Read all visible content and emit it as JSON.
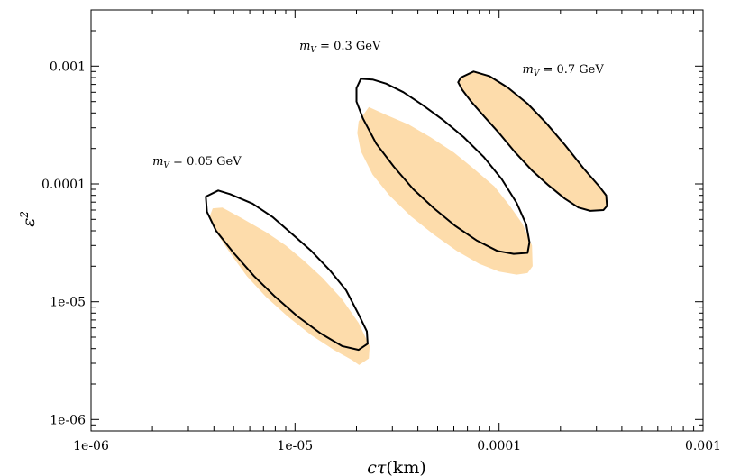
{
  "chart_data": {
    "type": "area",
    "title": "",
    "xlabel": {
      "symbol": "cτ",
      "unit": "(km)"
    },
    "ylabel": {
      "symbol": "ε",
      "power": "2"
    },
    "xscale": "log",
    "yscale": "log",
    "xlim": [
      1e-06,
      0.001
    ],
    "ylim": [
      8e-07,
      0.003
    ],
    "grid": false,
    "legend": "none",
    "x_ticks": [
      {
        "value": 1e-06,
        "label": "1e-06"
      },
      {
        "value": 1e-05,
        "label": "1e-05"
      },
      {
        "value": 0.0001,
        "label": "0.0001"
      },
      {
        "value": 0.001,
        "label": "0.001"
      }
    ],
    "y_ticks": [
      {
        "value": 1e-06,
        "label": "1e-06"
      },
      {
        "value": 1e-05,
        "label": "1e-05"
      },
      {
        "value": 0.0001,
        "label": "0.0001"
      },
      {
        "value": 0.001,
        "label": "0.001"
      }
    ],
    "colors": {
      "filled": "#fddcab",
      "outline": "#000000"
    },
    "annotations": [
      {
        "symbol": "m",
        "sub": "V",
        "rest": " = 0.05 GeV",
        "x": 2e-06,
        "y": 0.000145
      },
      {
        "symbol": "m",
        "sub": "V",
        "rest": " = 0.3 GeV",
        "x": 1.05e-05,
        "y": 0.00138
      },
      {
        "symbol": "m",
        "sub": "V",
        "rest": " = 0.7 GeV",
        "x": 0.00013,
        "y": 0.00087
      }
    ],
    "regions": [
      {
        "mass": "0.05 GeV",
        "filled": [
          [
            3.95e-06,
            6.2e-05
          ],
          [
            4.4e-06,
            6.3e-05
          ],
          [
            5.5e-06,
            5.1e-05
          ],
          [
            7.2e-06,
            3.9e-05
          ],
          [
            9e-06,
            3e-05
          ],
          [
            1.1e-05,
            2.25e-05
          ],
          [
            1.36e-05,
            1.6e-05
          ],
          [
            1.7e-05,
            1.05e-05
          ],
          [
            2.05e-05,
            6.6e-06
          ],
          [
            2.32e-05,
            4.2e-06
          ],
          [
            2.3e-05,
            3.3e-06
          ],
          [
            2.06e-05,
            2.9e-06
          ],
          [
            1.9e-05,
            3.2e-06
          ],
          [
            1.55e-05,
            3.9e-06
          ],
          [
            1.2e-05,
            5.2e-06
          ],
          [
            9.2e-06,
            7.5e-06
          ],
          [
            7.2e-06,
            1.1e-05
          ],
          [
            5.8e-06,
            1.65e-05
          ],
          [
            4.8e-06,
            2.6e-05
          ],
          [
            4.1e-06,
            3.9e-05
          ],
          [
            3.8e-06,
            5.2e-05
          ]
        ],
        "outline": [
          [
            3.65e-06,
            7.8e-05
          ],
          [
            4.2e-06,
            8.8e-05
          ],
          [
            4.8e-06,
            8.2e-05
          ],
          [
            6.2e-06,
            6.8e-05
          ],
          [
            7.8e-06,
            5.2e-05
          ],
          [
            9.6e-06,
            3.8e-05
          ],
          [
            1.2e-05,
            2.7e-05
          ],
          [
            1.48e-05,
            1.85e-05
          ],
          [
            1.78e-05,
            1.25e-05
          ],
          [
            2.05e-05,
            7.8e-06
          ],
          [
            2.25e-05,
            5.6e-06
          ],
          [
            2.27e-05,
            4.4e-06
          ],
          [
            2.05e-05,
            3.9e-06
          ],
          [
            1.7e-05,
            4.2e-06
          ],
          [
            1.33e-05,
            5.4e-06
          ],
          [
            1.03e-05,
            7.5e-06
          ],
          [
            8e-06,
            1.1e-05
          ],
          [
            6.3e-06,
            1.65e-05
          ],
          [
            5e-06,
            2.6e-05
          ],
          [
            4.1e-06,
            4e-05
          ],
          [
            3.7e-06,
            5.8e-05
          ]
        ]
      },
      {
        "mass": "0.3 GeV",
        "filled": [
          [
            2.05e-05,
            0.00034
          ],
          [
            2.3e-05,
            0.00045
          ],
          [
            2.8e-05,
            0.000385
          ],
          [
            3.6e-05,
            0.00032
          ],
          [
            4.6e-05,
            0.00025
          ],
          [
            6e-05,
            0.000185
          ],
          [
            7.5e-05,
            0.000135
          ],
          [
            9.5e-05,
            9.5e-05
          ],
          [
            0.000113,
            6.5e-05
          ],
          [
            0.00013,
            4.6e-05
          ],
          [
            0.000145,
            3e-05
          ],
          [
            0.000146,
            2e-05
          ],
          [
            0.000138,
            1.75e-05
          ],
          [
            0.000122,
            1.7e-05
          ],
          [
            0.0001,
            1.8e-05
          ],
          [
            8e-05,
            2.1e-05
          ],
          [
            6.2e-05,
            2.7e-05
          ],
          [
            4.8e-05,
            3.7e-05
          ],
          [
            3.7e-05,
            5.3e-05
          ],
          [
            2.9e-05,
            8e-05
          ],
          [
            2.4e-05,
            0.00012
          ],
          [
            2.1e-05,
            0.00019
          ],
          [
            2.02e-05,
            0.00027
          ]
        ],
        "outline": [
          [
            2e-05,
            0.00065
          ],
          [
            2.1e-05,
            0.00078
          ],
          [
            2.4e-05,
            0.00077
          ],
          [
            2.8e-05,
            0.00071
          ],
          [
            3.4e-05,
            0.0006
          ],
          [
            4.2e-05,
            0.00047
          ],
          [
            5.3e-05,
            0.00035
          ],
          [
            6.7e-05,
            0.00025
          ],
          [
            8.4e-05,
            0.00017
          ],
          [
            0.000103,
            0.00011
          ],
          [
            0.000122,
            6.9e-05
          ],
          [
            0.000136,
            4.5e-05
          ],
          [
            0.000141,
            3.2e-05
          ],
          [
            0.000138,
            2.6e-05
          ],
          [
            0.000118,
            2.55e-05
          ],
          [
            9.8e-05,
            2.7e-05
          ],
          [
            7.8e-05,
            3.3e-05
          ],
          [
            6.1e-05,
            4.4e-05
          ],
          [
            4.8e-05,
            6.2e-05
          ],
          [
            3.8e-05,
            9e-05
          ],
          [
            3.05e-05,
            0.00014
          ],
          [
            2.5e-05,
            0.00022
          ],
          [
            2.15e-05,
            0.00036
          ],
          [
            2e-05,
            0.0005
          ]
        ]
      },
      {
        "mass": "0.7 GeV",
        "filled": [
          [
            6.5e-05,
            0.0008
          ],
          [
            7.5e-05,
            0.0009
          ],
          [
            9e-05,
            0.00082
          ],
          [
            0.00011,
            0.00066
          ],
          [
            0.000138,
            0.00048
          ],
          [
            0.00017,
            0.00033
          ],
          [
            0.00021,
            0.000215
          ],
          [
            0.00026,
            0.000135
          ],
          [
            0.00031,
            9.5e-05
          ],
          [
            0.000335,
            8e-05
          ],
          [
            0.000338,
            6.5e-05
          ],
          [
            0.000325,
            6e-05
          ],
          [
            0.00028,
            5.9e-05
          ],
          [
            0.000245,
            6.3e-05
          ],
          [
            0.00021,
            7.5e-05
          ],
          [
            0.000175,
            9.7e-05
          ],
          [
            0.000145,
            0.00013
          ],
          [
            0.00012,
            0.000185
          ],
          [
            0.0001,
            0.00027
          ],
          [
            8.5e-05,
            0.00037
          ],
          [
            7.3e-05,
            0.0005
          ],
          [
            6.6e-05,
            0.00063
          ],
          [
            6.3e-05,
            0.00073
          ]
        ],
        "outline": [
          [
            6.5e-05,
            0.0008
          ],
          [
            7.5e-05,
            0.0009
          ],
          [
            9e-05,
            0.00082
          ],
          [
            0.00011,
            0.00066
          ],
          [
            0.000138,
            0.00048
          ],
          [
            0.00017,
            0.00033
          ],
          [
            0.00021,
            0.000215
          ],
          [
            0.00026,
            0.000135
          ],
          [
            0.00031,
            9.5e-05
          ],
          [
            0.000335,
            8e-05
          ],
          [
            0.000338,
            6.5e-05
          ],
          [
            0.000325,
            6e-05
          ],
          [
            0.00028,
            5.9e-05
          ],
          [
            0.000245,
            6.3e-05
          ],
          [
            0.00021,
            7.5e-05
          ],
          [
            0.000175,
            9.7e-05
          ],
          [
            0.000145,
            0.00013
          ],
          [
            0.00012,
            0.000185
          ],
          [
            0.0001,
            0.00027
          ],
          [
            8.5e-05,
            0.00037
          ],
          [
            7.3e-05,
            0.0005
          ],
          [
            6.6e-05,
            0.00063
          ],
          [
            6.3e-05,
            0.00073
          ]
        ]
      }
    ]
  }
}
